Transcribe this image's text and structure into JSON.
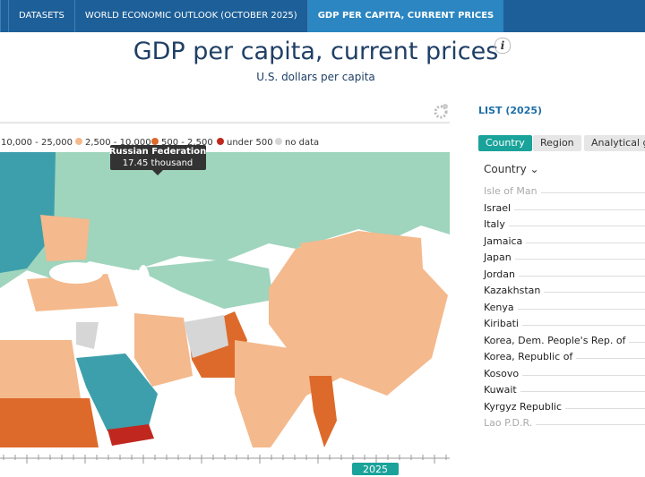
{
  "nav": {
    "items": [
      "DATASETS",
      "WORLD ECONOMIC OUTLOOK (OCTOBER 2025)",
      "GDP PER CAPITA, CURRENT PRICES"
    ]
  },
  "header": {
    "title": "GDP per capita, current prices",
    "subtitle": "U.S. dollars per capita",
    "info_icon": "i"
  },
  "map": {
    "legend": [
      {
        "label": "10,000 - 25,000",
        "color": "#3d9fab"
      },
      {
        "label": "2,500 - 10,000",
        "color": "#f4b98c"
      },
      {
        "label": "500 - 2,500",
        "color": "#dd6a2b"
      },
      {
        "label": "under 500",
        "color": "#c0281f"
      },
      {
        "label": "no data",
        "color": "#d6d6d6"
      }
    ],
    "tooltip": {
      "title": "Russian Federation",
      "value": "17.45 thousand"
    },
    "timeline": {
      "year": "2025"
    }
  },
  "list": {
    "title": "LIST (2025)",
    "tabs": [
      "Country",
      "Region",
      "Analytical gro"
    ],
    "sort_label": "Country",
    "countries": [
      "Isle of Man",
      "Israel",
      "Italy",
      "Jamaica",
      "Japan",
      "Jordan",
      "Kazakhstan",
      "Kenya",
      "Kiribati",
      "Korea, Dem. People's Rep. of",
      "Korea, Republic of",
      "Kosovo",
      "Kuwait",
      "Kyrgyz Republic",
      "Lao P.D.R."
    ]
  }
}
